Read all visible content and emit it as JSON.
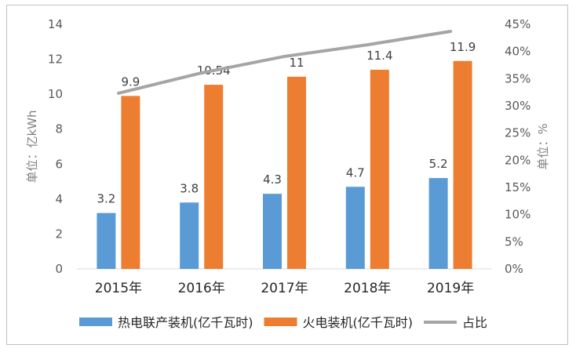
{
  "chart_data": {
    "type": "bar",
    "categories": [
      "2015年",
      "2016年",
      "2017年",
      "2018年",
      "2019年"
    ],
    "series": [
      {
        "name": "热电联产装机(亿千瓦时)",
        "kind": "bar",
        "axis": "left",
        "color": "#5b9bd5",
        "values": [
          3.2,
          3.8,
          4.3,
          4.7,
          5.2
        ],
        "labels": [
          "3.2",
          "3.8",
          "4.3",
          "4.7",
          "5.2"
        ]
      },
      {
        "name": "火电装机(亿千瓦时)",
        "kind": "bar",
        "axis": "left",
        "color": "#ed7d31",
        "values": [
          9.9,
          10.54,
          11,
          11.4,
          11.9
        ],
        "labels": [
          "9.9",
          "10.54",
          "11",
          "11.4",
          "11.9"
        ]
      },
      {
        "name": "占比",
        "kind": "line",
        "axis": "right",
        "color": "#a5a5a5",
        "values": [
          0.3232,
          0.3605,
          0.3909,
          0.4123,
          0.437
        ]
      }
    ],
    "ylabel": "单位：亿kWh",
    "y2label": "单位：%",
    "ylim": [
      0,
      14
    ],
    "yticks": [
      "0",
      "2",
      "4",
      "6",
      "8",
      "10",
      "12",
      "14"
    ],
    "y2lim": [
      0,
      0.45
    ],
    "y2ticks": [
      "0%",
      "5%",
      "10%",
      "15%",
      "20%",
      "25%",
      "30%",
      "35%",
      "40%",
      "45%"
    ],
    "grid": false,
    "legend_position": "bottom"
  }
}
